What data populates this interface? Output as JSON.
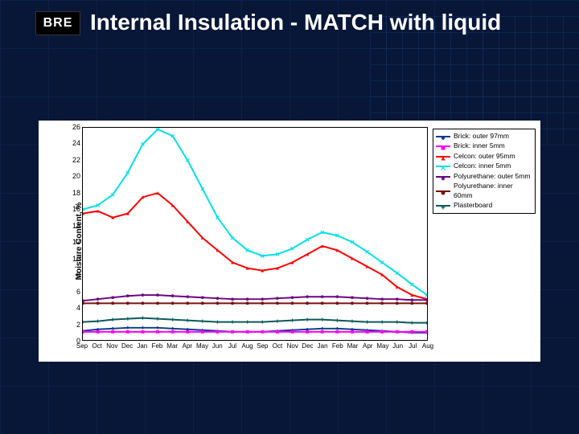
{
  "logo": {
    "text": "BRE"
  },
  "title": "Internal Insulation - MATCH with liquid",
  "chart": {
    "type": "line",
    "background_color": "#ffffff",
    "border_color": "#000000",
    "y_axis": {
      "label": "Moisture Content, %",
      "min": 0,
      "max": 26,
      "tick_step": 2,
      "label_fontsize": 10,
      "tick_fontsize": 9
    },
    "x_axis": {
      "categories": [
        "Sep",
        "Oct",
        "Nov",
        "Dec",
        "Jan",
        "Feb",
        "Mar",
        "Apr",
        "May",
        "Jun",
        "Jul",
        "Aug",
        "Sep",
        "Oct",
        "Nov",
        "Dec",
        "Jan",
        "Feb",
        "Mar",
        "Apr",
        "May",
        "Jun",
        "Jul",
        "Aug"
      ],
      "tick_fontsize": 8
    },
    "legend": {
      "position": "right",
      "border_color": "#000000",
      "fontsize": 8.5
    },
    "line_width": 2,
    "marker_size": 4,
    "series": [
      {
        "name": "Brick: outer 97mm",
        "color": "#0a3a8a",
        "marker": "diamond",
        "values": [
          1.1,
          1.3,
          1.4,
          1.5,
          1.5,
          1.5,
          1.4,
          1.3,
          1.2,
          1.1,
          1.0,
          1.0,
          1.0,
          1.1,
          1.2,
          1.3,
          1.4,
          1.4,
          1.3,
          1.2,
          1.1,
          1.0,
          0.9,
          0.9
        ]
      },
      {
        "name": "Brick: inner 5mm",
        "color": "#ff00ff",
        "marker": "square",
        "values": [
          1.0,
          1.0,
          1.0,
          1.0,
          1.0,
          1.0,
          1.0,
          1.0,
          1.0,
          1.0,
          1.0,
          1.0,
          1.0,
          1.0,
          1.0,
          1.0,
          1.0,
          1.0,
          1.0,
          1.0,
          1.0,
          1.0,
          1.0,
          1.0
        ]
      },
      {
        "name": "Celcon: outer 95mm",
        "color": "#ff0000",
        "marker": "triangle",
        "values": [
          15.5,
          15.8,
          15.0,
          15.5,
          17.5,
          18.0,
          16.5,
          14.5,
          12.5,
          11.0,
          9.5,
          8.8,
          8.5,
          8.8,
          9.5,
          10.5,
          11.5,
          11.0,
          10.0,
          9.0,
          8.0,
          6.5,
          5.5,
          5.0
        ]
      },
      {
        "name": "Celcon: inner 5mm",
        "color": "#00e0e8",
        "marker": "x",
        "values": [
          16.0,
          16.5,
          17.8,
          20.5,
          24.0,
          25.8,
          25.0,
          22.0,
          18.5,
          15.0,
          12.5,
          11.0,
          10.3,
          10.5,
          11.2,
          12.3,
          13.2,
          12.8,
          12.0,
          10.8,
          9.5,
          8.2,
          6.8,
          5.5
        ]
      },
      {
        "name": "Polyurethane: outer 5mm",
        "color": "#6a0680",
        "marker": "star",
        "values": [
          4.8,
          5.0,
          5.2,
          5.4,
          5.5,
          5.5,
          5.4,
          5.3,
          5.2,
          5.1,
          5.0,
          5.0,
          5.0,
          5.1,
          5.2,
          5.3,
          5.3,
          5.3,
          5.2,
          5.1,
          5.0,
          5.0,
          4.9,
          4.9
        ]
      },
      {
        "name": "Polyurethane: inner 60mm",
        "color": "#7a1010",
        "marker": "circle",
        "values": [
          4.5,
          4.5,
          4.5,
          4.5,
          4.5,
          4.5,
          4.5,
          4.5,
          4.5,
          4.5,
          4.5,
          4.5,
          4.5,
          4.5,
          4.5,
          4.5,
          4.5,
          4.5,
          4.5,
          4.5,
          4.5,
          4.5,
          4.5,
          4.5
        ]
      },
      {
        "name": "Plasterboard",
        "color": "#0a5a5a",
        "marker": "plus",
        "values": [
          2.2,
          2.3,
          2.5,
          2.6,
          2.7,
          2.6,
          2.5,
          2.4,
          2.3,
          2.2,
          2.2,
          2.2,
          2.2,
          2.3,
          2.4,
          2.5,
          2.5,
          2.4,
          2.3,
          2.2,
          2.2,
          2.2,
          2.1,
          2.1
        ]
      }
    ]
  }
}
